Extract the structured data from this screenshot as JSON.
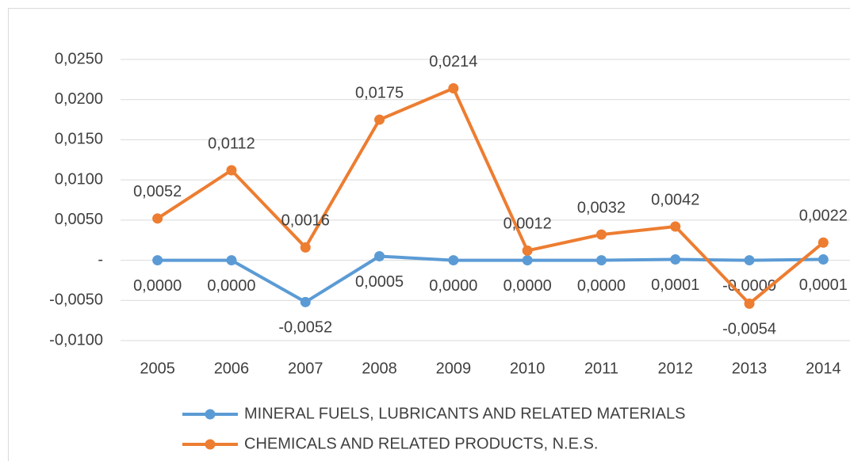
{
  "chart_data": {
    "type": "line",
    "categories": [
      "2005",
      "2006",
      "2007",
      "2008",
      "2009",
      "2010",
      "2011",
      "2012",
      "2013",
      "2014"
    ],
    "series": [
      {
        "name": "MINERAL FUELS, LUBRICANTS AND RELATED MATERIALS",
        "color": "#5b9bd5",
        "values": [
          0.0,
          0.0,
          -0.0052,
          0.0005,
          0.0,
          0.0,
          0.0,
          0.0001,
          0,
          0.0001
        ],
        "value_labels": [
          "0,0000",
          "0,0000",
          "-0,0052",
          "0,0005",
          "0,0000",
          "0,0000",
          "0,0000",
          "0,0001",
          "-0,0000",
          "0,0001"
        ]
      },
      {
        "name": "CHEMICALS AND RELATED PRODUCTS, N.E.S.",
        "color": "#ed7d31",
        "values": [
          0.0052,
          0.0112,
          0.0016,
          0.0175,
          0.0214,
          0.0012,
          0.0032,
          0.0042,
          -0.0054,
          0.0022
        ],
        "value_labels": [
          "0,0052",
          "0,0112",
          "0,0016",
          "0,0175",
          "0,0214",
          "0,0012",
          "0,0032",
          "0,0042",
          "-0,0054",
          "0,0022"
        ]
      }
    ],
    "ylim": [
      -0.01,
      0.025
    ],
    "yticks": [
      {
        "value": -0.01,
        "label": "-0,0100"
      },
      {
        "value": -0.005,
        "label": "-0,0050"
      },
      {
        "value": 0,
        "label": "-"
      },
      {
        "value": 0.005,
        "label": "0,0050"
      },
      {
        "value": 0.01,
        "label": "0,0100"
      },
      {
        "value": 0.015,
        "label": "0,0150"
      },
      {
        "value": 0.02,
        "label": "0,0200"
      },
      {
        "value": 0.025,
        "label": "0,0250"
      }
    ],
    "grid": true
  }
}
